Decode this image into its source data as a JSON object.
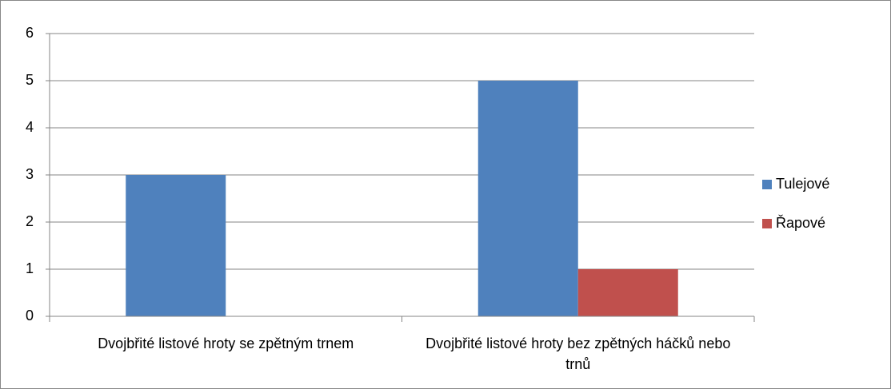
{
  "chart_data": {
    "type": "bar",
    "categories": [
      "Dvojbřité listové hroty se zpětným trnem",
      "Dvojbřité listové hroty bez zpětných háčků nebo trnů"
    ],
    "series": [
      {
        "name": "Tulejové",
        "color": "#4f81bd",
        "values": [
          3,
          5
        ]
      },
      {
        "name": "Řapové",
        "color": "#c0504d",
        "values": [
          0,
          1
        ]
      }
    ],
    "ylim": [
      0,
      6
    ],
    "yticks": [
      0,
      1,
      2,
      3,
      4,
      5,
      6
    ],
    "grid": true,
    "legend": "right"
  }
}
